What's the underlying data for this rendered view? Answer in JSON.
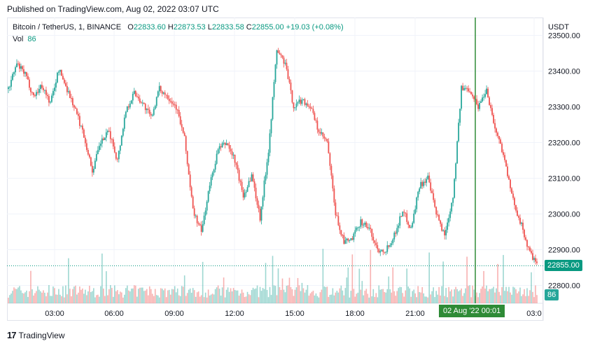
{
  "header": {
    "published": "Published on TradingView.com, Aug 02, 2022 03:07 UTC"
  },
  "legend": {
    "symbol": "Bitcoin / TetherUS, 1, BINANCE",
    "open_label": "O",
    "open": "22833.60",
    "high_label": "H",
    "high": "22873.53",
    "low_label": "L",
    "low": "22833.58",
    "close_label": "C",
    "close": "22855.00",
    "change": "+19.03 (+0.08%)",
    "volume_label": "Vol",
    "volume": "86"
  },
  "currency": "USDT",
  "footer": {
    "brand": "TradingView"
  },
  "colors": {
    "up": "#26a69a",
    "down": "#ef5350",
    "crosshair": "#2e8b36",
    "last_price": "#089981"
  },
  "chart_data": {
    "type": "candlestick",
    "price_axis": {
      "min": 22750,
      "max": 23550,
      "ticks": [
        "23500.00",
        "23400.00",
        "23300.00",
        "23200.00",
        "23100.00",
        "23000.00",
        "22900.00",
        "22800.00"
      ]
    },
    "time_axis": {
      "ticks": [
        "03:00",
        "06:00",
        "09:00",
        "12:00",
        "15:00",
        "18:00",
        "21:00",
        "03:0"
      ]
    },
    "crosshair_label": "02 Aug '22   00:01",
    "last_price_label": "22855.00",
    "volume_label": "86",
    "close_path": [
      [
        0,
        23350
      ],
      [
        6,
        23420
      ],
      [
        12,
        23390
      ],
      [
        18,
        23330
      ],
      [
        24,
        23360
      ],
      [
        30,
        23310
      ],
      [
        36,
        23405
      ],
      [
        42,
        23350
      ],
      [
        48,
        23290
      ],
      [
        54,
        23220
      ],
      [
        60,
        23120
      ],
      [
        66,
        23200
      ],
      [
        72,
        23230
      ],
      [
        78,
        23150
      ],
      [
        84,
        23290
      ],
      [
        90,
        23340
      ],
      [
        96,
        23310
      ],
      [
        102,
        23270
      ],
      [
        108,
        23350
      ],
      [
        114,
        23330
      ],
      [
        120,
        23300
      ],
      [
        126,
        23210
      ],
      [
        132,
        23010
      ],
      [
        138,
        22950
      ],
      [
        144,
        23080
      ],
      [
        150,
        23180
      ],
      [
        156,
        23200
      ],
      [
        162,
        23150
      ],
      [
        168,
        23050
      ],
      [
        174,
        23110
      ],
      [
        180,
        22990
      ],
      [
        186,
        23180
      ],
      [
        192,
        23460
      ],
      [
        198,
        23420
      ],
      [
        204,
        23300
      ],
      [
        210,
        23320
      ],
      [
        216,
        23300
      ],
      [
        222,
        23230
      ],
      [
        228,
        23200
      ],
      [
        234,
        23000
      ],
      [
        240,
        22920
      ],
      [
        246,
        22930
      ],
      [
        252,
        22980
      ],
      [
        258,
        22960
      ],
      [
        264,
        22900
      ],
      [
        270,
        22900
      ],
      [
        276,
        22940
      ],
      [
        282,
        23010
      ],
      [
        288,
        22960
      ],
      [
        294,
        23080
      ],
      [
        300,
        23100
      ],
      [
        306,
        23000
      ],
      [
        312,
        22940
      ],
      [
        318,
        23050
      ],
      [
        324,
        23350
      ],
      [
        330,
        23350
      ],
      [
        336,
        23300
      ],
      [
        342,
        23350
      ],
      [
        348,
        23240
      ],
      [
        354,
        23170
      ],
      [
        360,
        23050
      ],
      [
        366,
        22980
      ],
      [
        372,
        22900
      ],
      [
        378,
        22855
      ]
    ]
  }
}
